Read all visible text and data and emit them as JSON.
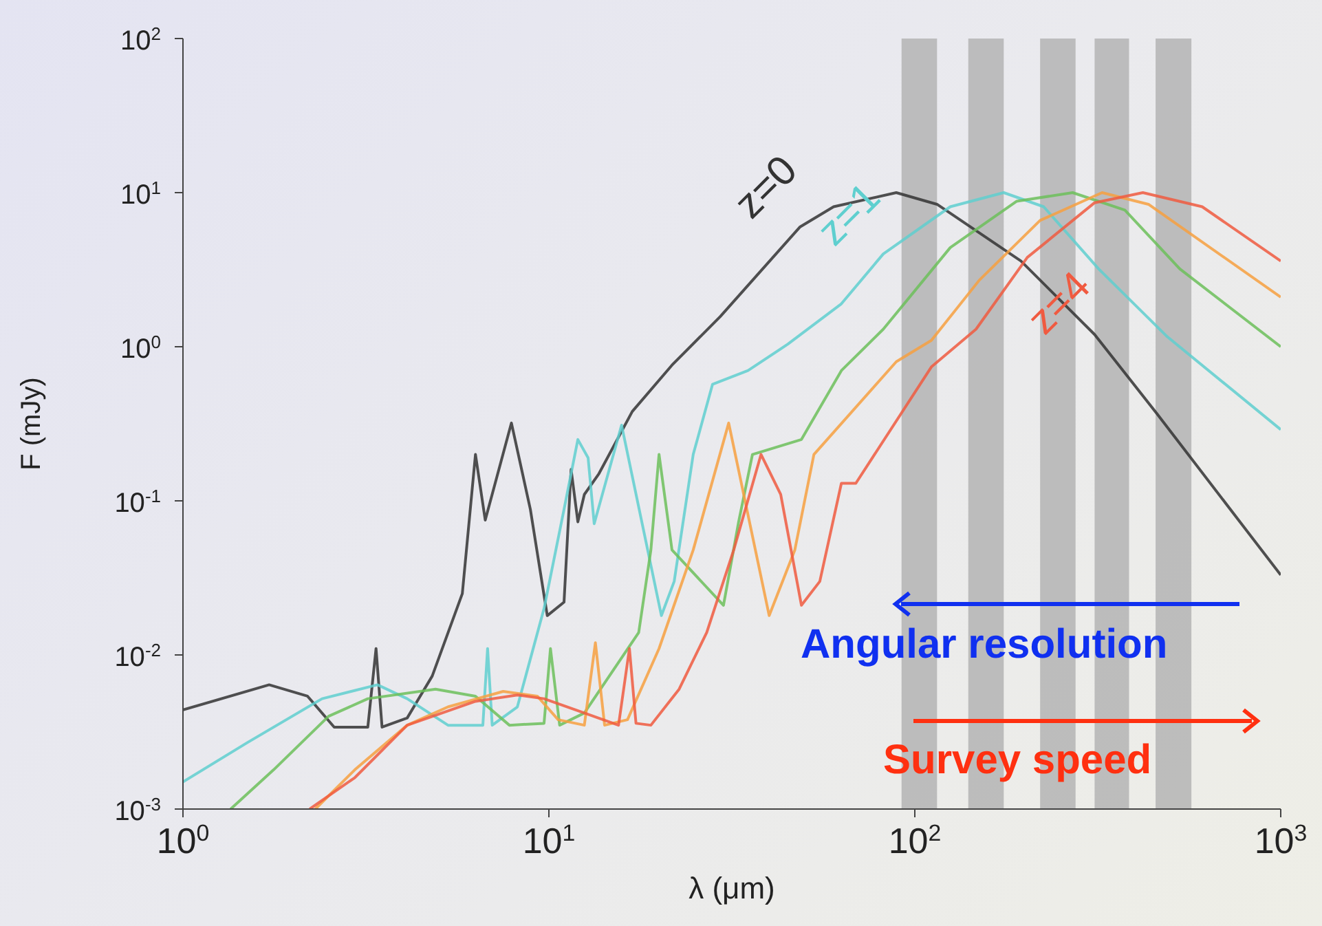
{
  "chart_data": {
    "type": "line",
    "xlabel": "λ (μm)",
    "ylabel": "F (mJy)",
    "log": "xy",
    "marker": "none",
    "line_style": "solid",
    "xlim": [
      1,
      1000
    ],
    "ylim": [
      0.001,
      100
    ],
    "xticks": [
      {
        "value": 1,
        "label": "10$^{0}$"
      },
      {
        "value": 10,
        "label": "10$^{1}$"
      },
      {
        "value": 100,
        "label": "10$^{2}$"
      },
      {
        "value": 1000,
        "label": "10$^{3}$"
      }
    ],
    "yticks": [
      {
        "value": 0.001,
        "label": "10$^{-3}$"
      },
      {
        "value": 0.01,
        "label": "10$^{-2}$"
      },
      {
        "value": 0.1,
        "label": "10$^{-1}$"
      },
      {
        "value": 1,
        "label": "10$^{0}$"
      },
      {
        "value": 10,
        "label": "10$^{1}$"
      },
      {
        "value": 100,
        "label": "10$^{2}$"
      }
    ],
    "bands": [
      {
        "axis": "x",
        "from": 92,
        "to": 115,
        "color": "#b4b4b4"
      },
      {
        "axis": "x",
        "from": 140,
        "to": 175,
        "color": "#b4b4b4"
      },
      {
        "axis": "x",
        "from": 220,
        "to": 275,
        "color": "#b4b4b4"
      },
      {
        "axis": "x",
        "from": 310,
        "to": 385,
        "color": "#b4b4b4"
      },
      {
        "axis": "x",
        "from": 455,
        "to": 570,
        "color": "#b4b4b4"
      }
    ],
    "annotations": [
      "Angular resolution",
      "Survey speed"
    ],
    "series": [
      {
        "name": "z=0",
        "color": "#333333",
        "x": [
          1,
          1.72,
          2.19,
          2.59,
          3.2,
          3.37,
          3.5,
          4.1,
          4.8,
          5.8,
          6.3,
          6.7,
          7.9,
          8.9,
          9.9,
          11,
          11.5,
          12,
          12.5,
          13.7,
          16.9,
          21.7,
          29.4,
          48.6,
          60,
          89,
          115,
          195,
          310,
          458,
          1000
        ],
        "values": [
          0.0044,
          0.0064,
          0.0054,
          0.0034,
          0.0034,
          0.011,
          0.0034,
          0.0039,
          0.0073,
          0.025,
          0.2,
          0.075,
          0.32,
          0.088,
          0.018,
          0.022,
          0.16,
          0.073,
          0.11,
          0.15,
          0.38,
          0.76,
          1.57,
          6,
          8.1,
          10,
          8.4,
          3.6,
          1.2,
          0.37,
          0.033
        ]
      },
      {
        "name": "z=1",
        "color": "#5fcfcf",
        "x": [
          1,
          1.5,
          2.4,
          3.4,
          4.1,
          5.3,
          6.6,
          6.8,
          7,
          8.2,
          9.7,
          11,
          12,
          12.8,
          13.3,
          15.8,
          20.3,
          22,
          24.8,
          28,
          35,
          45,
          63,
          82,
          125,
          175,
          225,
          318,
          490,
          1000
        ],
        "values": [
          0.0015,
          0.0027,
          0.0052,
          0.0064,
          0.0052,
          0.0035,
          0.0035,
          0.011,
          0.0035,
          0.0046,
          0.02,
          0.088,
          0.25,
          0.19,
          0.071,
          0.31,
          0.018,
          0.03,
          0.2,
          0.57,
          0.7,
          1.04,
          1.9,
          4,
          8.1,
          10,
          8.1,
          3.2,
          1.16,
          0.29
        ]
      },
      {
        "color": "#6cbf5a",
        "x": [
          1.35,
          1.77,
          2.5,
          3.2,
          4.9,
          6.3,
          7.8,
          9.7,
          10.1,
          10.7,
          12.5,
          17.6,
          19,
          20,
          21.7,
          30,
          33,
          36,
          49,
          63,
          82,
          125,
          190,
          270,
          375,
          530,
          1000
        ],
        "values": [
          0.001,
          0.0018,
          0.004,
          0.0052,
          0.006,
          0.0054,
          0.0035,
          0.0036,
          0.011,
          0.0035,
          0.0042,
          0.014,
          0.048,
          0.2,
          0.048,
          0.021,
          0.073,
          0.2,
          0.25,
          0.7,
          1.3,
          4.4,
          8.8,
          10,
          7.7,
          3.2,
          1
        ]
      },
      {
        "color": "#f7a040",
        "x": [
          2.3,
          2.95,
          4.1,
          5.3,
          7.5,
          9.3,
          10.6,
          12.5,
          13.4,
          14.2,
          16.4,
          20,
          24.8,
          31,
          40,
          47,
          53,
          89,
          111,
          150,
          220,
          325,
          435,
          1000
        ],
        "values": [
          0.001,
          0.0018,
          0.0035,
          0.0046,
          0.0058,
          0.0054,
          0.0038,
          0.0035,
          0.012,
          0.0035,
          0.0038,
          0.011,
          0.048,
          0.32,
          0.018,
          0.048,
          0.2,
          0.8,
          1.1,
          2.7,
          6.6,
          10,
          8.4,
          2.1
        ]
      },
      {
        "name": "z=4",
        "color": "#f05a40",
        "x": [
          2.22,
          2.95,
          4.1,
          6.3,
          8.2,
          9.7,
          12.5,
          15.5,
          16.6,
          17.3,
          19,
          22.7,
          27,
          32,
          38,
          43,
          49,
          55,
          63,
          69,
          111,
          147,
          203,
          310,
          420,
          610,
          1000
        ],
        "values": [
          0.001,
          0.0016,
          0.0035,
          0.005,
          0.0055,
          0.0052,
          0.0042,
          0.0035,
          0.011,
          0.0036,
          0.0035,
          0.006,
          0.014,
          0.048,
          0.2,
          0.11,
          0.021,
          0.03,
          0.13,
          0.13,
          0.74,
          1.3,
          3.8,
          8.6,
          10,
          8.1,
          3.6
        ]
      }
    ]
  }
}
